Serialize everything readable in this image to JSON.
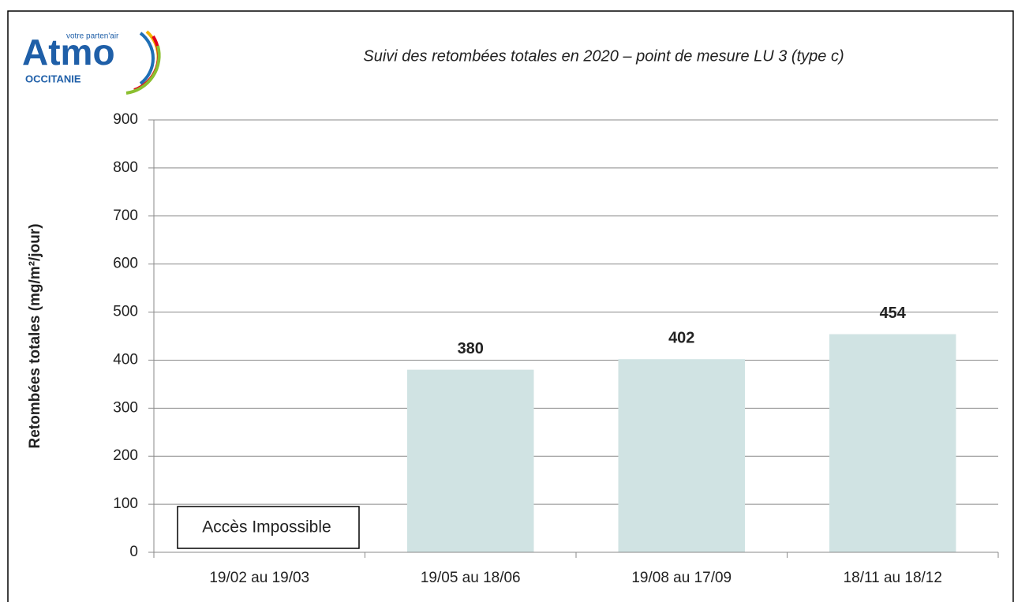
{
  "logo": {
    "name": "Atmo",
    "tagline": "votre parten'air",
    "region": "OCCITANIE"
  },
  "chart_data": {
    "type": "bar",
    "title": "Suivi des retombées totales en 2020 – point de mesure LU 3 (type c)",
    "y_label": "Retombées totales (mg/m²/jour)",
    "categories": [
      "19/02 au 19/03",
      "19/05 au 18/06",
      "19/08 au 17/09",
      "18/11 au 18/12"
    ],
    "values": [
      null,
      380,
      402,
      454
    ],
    "color": "#d0e3e3",
    "annotations": [
      "Accès Impossible"
    ],
    "ylim": [
      0,
      900
    ],
    "yticks": [
      0,
      100,
      200,
      300,
      400,
      500,
      600,
      700,
      800,
      900
    ],
    "grid": true
  }
}
